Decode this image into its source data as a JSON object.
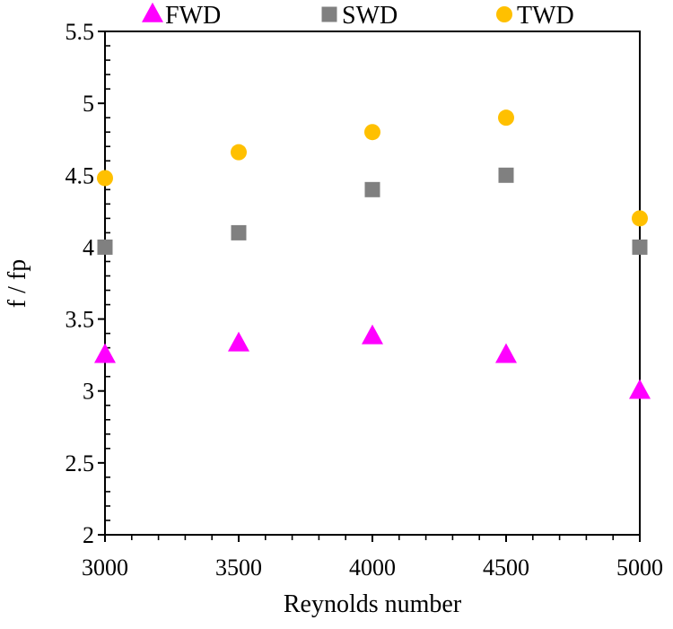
{
  "chart_data": {
    "type": "scatter",
    "title": "",
    "xlabel": "Reynolds number",
    "ylabel": "f / fp",
    "xlim": [
      3000,
      5000
    ],
    "ylim": [
      2,
      5.5
    ],
    "x_ticks": [
      3000,
      3500,
      4000,
      4500,
      5000
    ],
    "y_ticks": [
      2,
      2.5,
      3,
      3.5,
      4,
      4.5,
      5,
      5.5
    ],
    "x_tick_labels": [
      "3000",
      "3500",
      "4000",
      "4500",
      "5000"
    ],
    "y_tick_labels": [
      "2",
      "2.5",
      "3",
      "3.5",
      "4",
      "4.5",
      "5",
      "5.5"
    ],
    "x_minor_step": 100,
    "y_minor_step": 0.1,
    "grid": false,
    "legend_position": "top",
    "series": [
      {
        "name": "FWD",
        "marker": "triangle",
        "color": "#FF00FF",
        "x": [
          3000,
          3500,
          4000,
          4500,
          5000
        ],
        "values": [
          3.25,
          3.33,
          3.38,
          3.25,
          3.0
        ]
      },
      {
        "name": "SWD",
        "marker": "square",
        "color": "#808080",
        "x": [
          3000,
          3500,
          4000,
          4500,
          5000
        ],
        "values": [
          4.0,
          4.1,
          4.4,
          4.5,
          4.0
        ]
      },
      {
        "name": "TWD",
        "marker": "circle",
        "color": "#FFC000",
        "x": [
          3000,
          3500,
          4000,
          4500,
          5000
        ],
        "values": [
          4.48,
          4.66,
          4.8,
          4.9,
          4.2
        ]
      }
    ]
  }
}
